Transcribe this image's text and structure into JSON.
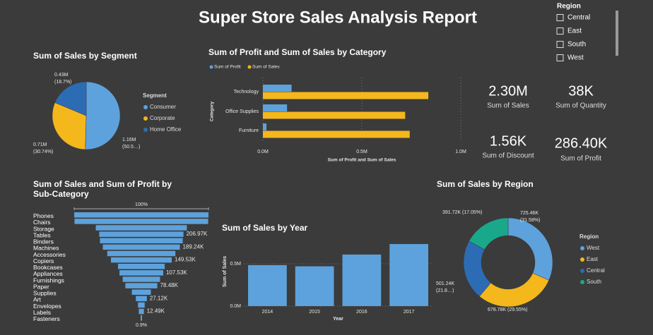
{
  "title": "Super Store Sales Analysis Report",
  "slicer": {
    "title": "Region",
    "items": [
      "Central",
      "East",
      "South",
      "West"
    ]
  },
  "cards": [
    {
      "value": "2.30M",
      "label": "Sum of Sales"
    },
    {
      "value": "38K",
      "label": "Sum of Quantity"
    },
    {
      "value": "1.56K",
      "label": "Sum of Discount"
    },
    {
      "value": "286.40K",
      "label": "Sum of Profit"
    }
  ],
  "chart_data": [
    {
      "type": "pie",
      "title": "Sum of Sales by Segment",
      "legend_title": "Segment",
      "categories": [
        "Consumer",
        "Corporate",
        "Home Office"
      ],
      "values": [
        1.16,
        0.71,
        0.43
      ],
      "value_labels": [
        "1.16M (50.5…)",
        "0.71M (30.74%)",
        "0.43M (18.7%)"
      ],
      "colors": [
        "#5da2dc",
        "#f4b71c",
        "#2c6cb4"
      ]
    },
    {
      "type": "bar",
      "orientation": "horizontal",
      "title": "Sum of Profit and Sum of Sales by Category",
      "categories": [
        "Technology",
        "Office Supplies",
        "Furniture"
      ],
      "series": [
        {
          "name": "Sum of Profit",
          "color": "#5da2dc",
          "values": [
            0.145,
            0.122,
            0.018
          ]
        },
        {
          "name": "Sum of Sales",
          "color": "#f4b71c",
          "values": [
            0.836,
            0.719,
            0.742
          ]
        }
      ],
      "xlim": [
        0,
        1.0
      ],
      "xticks": [
        {
          "value": 0,
          "label": "0.0M"
        },
        {
          "value": 0.5,
          "label": "0.5M"
        },
        {
          "value": 1.0,
          "label": "1.0M"
        }
      ],
      "x_label": "Sum of Profit and Sum of Sales",
      "y_label": "Category",
      "grid": true
    },
    {
      "type": "funnel",
      "title": "Sum of Sales and Sum of Profit by Sub-Category",
      "color": "#5da2dc",
      "categories": [
        "Phones",
        "Chairs",
        "Storage",
        "Tables",
        "Binders",
        "Machines",
        "Accessories",
        "Copiers",
        "Bookcases",
        "Appliances",
        "Furnishings",
        "Paper",
        "Supplies",
        "Art",
        "Envelopes",
        "Labels",
        "Fasteners"
      ],
      "values": [
        330.0,
        328.4,
        223.8,
        206.97,
        203.4,
        189.24,
        167.4,
        149.53,
        114.9,
        107.53,
        91.7,
        78.48,
        46.7,
        27.12,
        16.5,
        12.49,
        3.0
      ],
      "value_labels": [
        null,
        null,
        null,
        "206.97K",
        null,
        "189.24K",
        null,
        "149.53K",
        null,
        "107.53K",
        null,
        "78.48K",
        null,
        "27.12K",
        null,
        "12.49K",
        null
      ],
      "percent_labels": [
        "100%",
        "0.9%"
      ]
    },
    {
      "type": "bar",
      "orientation": "vertical",
      "title": "Sum of Sales by Year",
      "color": "#5da2dc",
      "categories": [
        "2014",
        "2015",
        "2016",
        "2017"
      ],
      "values": [
        0.484,
        0.47,
        0.609,
        0.733
      ],
      "ylim": [
        0,
        0.8
      ],
      "yticks": [
        {
          "value": 0,
          "label": "0.0M"
        },
        {
          "value": 0.5,
          "label": "0.5M"
        }
      ],
      "x_label": "Year",
      "y_label": "Sum of Sales",
      "grid": true
    },
    {
      "type": "donut",
      "title": "Sum of Sales by Region",
      "legend_title": "Region",
      "categories": [
        "West",
        "East",
        "Central",
        "South"
      ],
      "values": [
        725.46,
        678.78,
        501.24,
        391.72
      ],
      "value_labels": [
        "725.46K (31.58%)",
        "678.78K (29.55%)",
        "501.24K (21.8…)",
        "391.72K (17.05%)"
      ],
      "colors": [
        "#5da2dc",
        "#f4b71c",
        "#2c6cb4",
        "#1aa88a"
      ]
    }
  ]
}
